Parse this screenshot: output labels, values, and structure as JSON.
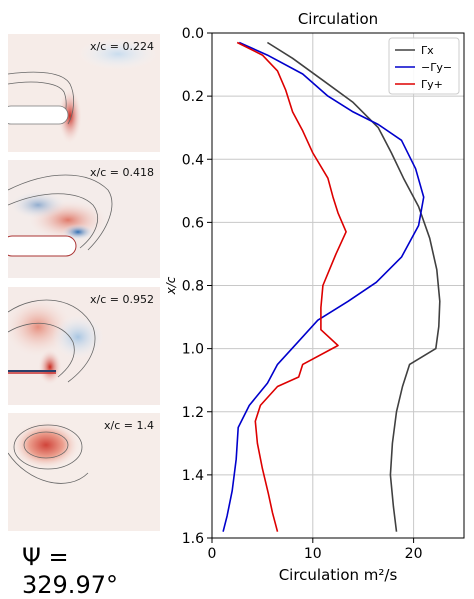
{
  "panels": [
    {
      "label": "x/c = 0.224"
    },
    {
      "label": "x/c = 0.418"
    },
    {
      "label": "x/c = 0.952"
    },
    {
      "label": "x/c = 1.4"
    }
  ],
  "psi_label": "Ψ = 329.97°",
  "chart_data": {
    "type": "line",
    "title": "Circulation",
    "xlabel": "Circulation m²/s",
    "ylabel": "x/c",
    "xlim": [
      0,
      25
    ],
    "ylim": [
      1.6,
      0.0
    ],
    "y_inverted": true,
    "xticks": [
      0,
      10,
      20
    ],
    "yticks": [
      0.0,
      0.2,
      0.4,
      0.6,
      0.8,
      1.0,
      1.2,
      1.4,
      1.6
    ],
    "grid": true,
    "legend_position": "top-right",
    "series": [
      {
        "name": "Γx",
        "color": "#404040",
        "points": [
          [
            5.5,
            0.03
          ],
          [
            8,
            0.08
          ],
          [
            11,
            0.15
          ],
          [
            14,
            0.22
          ],
          [
            16.5,
            0.3
          ],
          [
            17.8,
            0.38
          ],
          [
            19,
            0.46
          ],
          [
            20.5,
            0.55
          ],
          [
            21.6,
            0.65
          ],
          [
            22.3,
            0.75
          ],
          [
            22.6,
            0.85
          ],
          [
            22.5,
            0.93
          ],
          [
            22.2,
            1.0
          ],
          [
            19.6,
            1.05
          ],
          [
            18.9,
            1.12
          ],
          [
            18.3,
            1.2
          ],
          [
            17.9,
            1.3
          ],
          [
            17.7,
            1.4
          ],
          [
            18.0,
            1.5
          ],
          [
            18.3,
            1.58
          ]
        ]
      },
      {
        "name": "−Γy−",
        "color": "#0000cc",
        "points": [
          [
            2.7,
            0.03
          ],
          [
            5.5,
            0.07
          ],
          [
            9,
            0.13
          ],
          [
            11.5,
            0.2
          ],
          [
            14,
            0.25
          ],
          [
            16.5,
            0.29
          ],
          [
            18.8,
            0.34
          ],
          [
            20.2,
            0.43
          ],
          [
            21.0,
            0.52
          ],
          [
            20.5,
            0.61
          ],
          [
            18.8,
            0.71
          ],
          [
            16.3,
            0.79
          ],
          [
            13.5,
            0.85
          ],
          [
            10.5,
            0.91
          ],
          [
            8.5,
            0.98
          ],
          [
            6.5,
            1.05
          ],
          [
            5.5,
            1.11
          ],
          [
            3.7,
            1.18
          ],
          [
            2.6,
            1.25
          ],
          [
            2.4,
            1.35
          ],
          [
            2.0,
            1.45
          ],
          [
            1.5,
            1.53
          ],
          [
            1.1,
            1.58
          ]
        ]
      },
      {
        "name": "Γy+",
        "color": "#dd0000",
        "points": [
          [
            2.5,
            0.03
          ],
          [
            5,
            0.07
          ],
          [
            6.5,
            0.12
          ],
          [
            7.3,
            0.18
          ],
          [
            8,
            0.25
          ],
          [
            9,
            0.31
          ],
          [
            10,
            0.38
          ],
          [
            11.5,
            0.46
          ],
          [
            12,
            0.52
          ],
          [
            12.5,
            0.57
          ],
          [
            13.3,
            0.63
          ],
          [
            12.3,
            0.7
          ],
          [
            11,
            0.8
          ],
          [
            10.8,
            0.87
          ],
          [
            10.8,
            0.94
          ],
          [
            12.5,
            0.99
          ],
          [
            9.0,
            1.05
          ],
          [
            8.6,
            1.09
          ],
          [
            6.5,
            1.12
          ],
          [
            4.8,
            1.18
          ],
          [
            4.3,
            1.23
          ],
          [
            4.5,
            1.3
          ],
          [
            5,
            1.38
          ],
          [
            5.6,
            1.46
          ],
          [
            6,
            1.52
          ],
          [
            6.5,
            1.58
          ]
        ]
      }
    ]
  }
}
